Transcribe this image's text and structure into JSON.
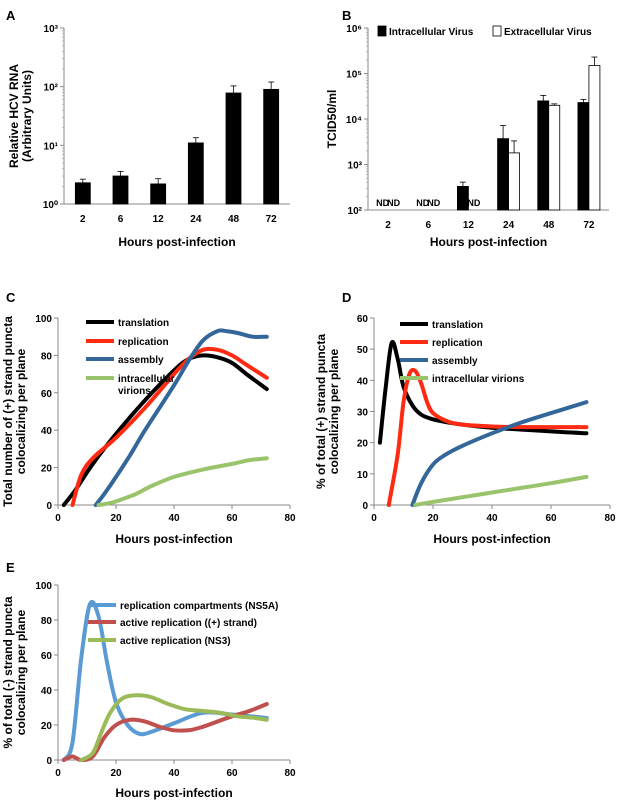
{
  "chart_data": [
    {
      "id": "A",
      "type": "bar",
      "letter": "A",
      "ylabel_lines": [
        "Relative HCV RNA",
        "(Arbitrary Units)"
      ],
      "xlabel": "Hours post-infection",
      "yscale": "log",
      "ylim": [
        1,
        1000
      ],
      "ytick_labels": [
        "10⁰",
        "10¹",
        "10²",
        "10³"
      ],
      "categories": [
        "2",
        "6",
        "12",
        "24",
        "48",
        "72"
      ],
      "series": [
        {
          "values": [
            2.3,
            3.0,
            2.2,
            11,
            78,
            90
          ],
          "errors": [
            0.35,
            0.6,
            0.5,
            2.5,
            25,
            30
          ],
          "color": "#000000"
        }
      ]
    },
    {
      "id": "B",
      "type": "bar",
      "letter": "B",
      "ylabel": "TCID50/ml",
      "xlabel": "Hours post-infection",
      "yscale": "log",
      "ylim": [
        100,
        1000000
      ],
      "ytick_labels": [
        "10²",
        "10³",
        "10⁴",
        "10⁵",
        "10⁶"
      ],
      "categories": [
        "2",
        "6",
        "12",
        "24",
        "48",
        "72"
      ],
      "legend_position": "top",
      "series": [
        {
          "name": "Intracellular Virus",
          "values": [
            null,
            null,
            330,
            3700,
            25000,
            23000
          ],
          "errors": [
            null,
            null,
            80,
            3500,
            8000,
            4000
          ],
          "color": "#000000"
        },
        {
          "name": "Extracellular Virus",
          "values": [
            null,
            null,
            null,
            1800,
            20000,
            150000
          ],
          "errors": [
            null,
            null,
            null,
            1500,
            1500,
            80000
          ],
          "color": "#ffffff"
        }
      ],
      "nd_label": "ND"
    },
    {
      "id": "C",
      "type": "line",
      "letter": "C",
      "ylabel_lines": [
        "Total number of (+) strand puncta",
        "colocalizing per plane"
      ],
      "xlabel": "Hours post-infection",
      "xlim": [
        0,
        80
      ],
      "ylim": [
        0,
        100
      ],
      "xticks": [
        0,
        20,
        40,
        60,
        80
      ],
      "yticks": [
        0,
        20,
        40,
        60,
        80,
        100
      ],
      "legend_position": "top-right",
      "series": [
        {
          "name": "translation",
          "color": "#000000",
          "x": [
            2,
            6,
            12,
            20,
            30,
            40,
            45,
            50,
            55,
            60,
            65,
            72
          ],
          "y": [
            0,
            8,
            22,
            38,
            56,
            72,
            78,
            80,
            79,
            76,
            70,
            62
          ]
        },
        {
          "name": "replication",
          "color": "#ff2a12",
          "x": [
            5,
            8,
            12,
            20,
            30,
            40,
            45,
            50,
            55,
            60,
            65,
            72
          ],
          "y": [
            0,
            16,
            25,
            36,
            52,
            70,
            78,
            83,
            83,
            80,
            75,
            68
          ]
        },
        {
          "name": "assembly",
          "color": "#336699",
          "x": [
            13,
            16,
            20,
            25,
            30,
            40,
            45,
            50,
            55,
            58,
            62,
            67,
            72
          ],
          "y": [
            0,
            6,
            15,
            27,
            40,
            64,
            77,
            88,
            93,
            93,
            92,
            90,
            90
          ]
        },
        {
          "name": "intracellular virions",
          "name_lines": [
            "intracellular",
            "virions"
          ],
          "color": "#99c46c",
          "x": [
            14,
            18,
            22,
            27,
            32,
            40,
            50,
            60,
            66,
            72
          ],
          "y": [
            0,
            1,
            3,
            6,
            10,
            15,
            19,
            22,
            24,
            25
          ]
        }
      ]
    },
    {
      "id": "D",
      "type": "line",
      "letter": "D",
      "ylabel_lines": [
        "% of total (+) strand puncta",
        "colocalizing per plane"
      ],
      "xlabel": "Hours post-infection",
      "xlim": [
        0,
        80
      ],
      "ylim": [
        0,
        60
      ],
      "xticks": [
        0,
        20,
        40,
        60,
        80
      ],
      "yticks": [
        0,
        10,
        20,
        30,
        40,
        50,
        60
      ],
      "legend_position": "top-right",
      "series": [
        {
          "name": "translation",
          "color": "#000000",
          "x": [
            2,
            4,
            6,
            8,
            10,
            13,
            16,
            20,
            25,
            30,
            40,
            50,
            60,
            72
          ],
          "y": [
            20,
            38,
            52,
            47,
            38,
            32,
            29,
            27.5,
            26.5,
            25.8,
            24.8,
            24.2,
            23.6,
            23
          ]
        },
        {
          "name": "replication",
          "color": "#ff2a12",
          "x": [
            5,
            8,
            10,
            12,
            14,
            16,
            18,
            20,
            25,
            30,
            40,
            50,
            60,
            72
          ],
          "y": [
            0,
            16,
            33,
            42,
            43,
            39,
            33,
            29.5,
            26.8,
            25.8,
            25.2,
            25,
            25,
            25
          ]
        },
        {
          "name": "assembly",
          "color": "#336699",
          "x": [
            13,
            16,
            20,
            24,
            30,
            40,
            50,
            60,
            72
          ],
          "y": [
            0,
            7,
            13,
            16,
            19,
            23,
            26.5,
            29.5,
            33
          ]
        },
        {
          "name": "intracellular virions",
          "color": "#99c46c",
          "x": [
            14,
            20,
            30,
            40,
            50,
            60,
            72
          ],
          "y": [
            0,
            1,
            2.5,
            4,
            5.5,
            7,
            9
          ]
        }
      ]
    },
    {
      "id": "E",
      "type": "line",
      "letter": "E",
      "ylabel_lines": [
        "% of total (-) strand puncta",
        "colocalizing per plane"
      ],
      "xlabel": "Hours post-infection",
      "xlim": [
        0,
        80
      ],
      "ylim": [
        0,
        100
      ],
      "xticks": [
        0,
        20,
        40,
        60,
        80
      ],
      "yticks": [
        0,
        20,
        40,
        60,
        80,
        100
      ],
      "legend_position": "top-right",
      "series": [
        {
          "name": "replication compartments (NS5A)",
          "color": "#5b9bd5",
          "x": [
            2,
            5,
            8,
            11,
            14,
            17,
            20,
            24,
            28,
            32,
            40,
            50,
            60,
            72
          ],
          "y": [
            0,
            10,
            58,
            89,
            82,
            55,
            33,
            20,
            15,
            16,
            21,
            27,
            26,
            24
          ]
        },
        {
          "name": "active replication ((+) strand)",
          "color": "#c0504d",
          "x": [
            2,
            5,
            8,
            12,
            16,
            20,
            25,
            30,
            35,
            40,
            45,
            50,
            55,
            60,
            66,
            72
          ],
          "y": [
            0,
            2,
            0,
            2,
            13,
            20,
            23,
            22,
            19,
            17,
            17,
            19,
            22,
            25,
            28,
            32
          ]
        },
        {
          "name": "active replication (NS3)",
          "color": "#9bbb59",
          "x": [
            8,
            12,
            15,
            18,
            22,
            27,
            32,
            38,
            44,
            50,
            56,
            62,
            68,
            72
          ],
          "y": [
            0,
            4,
            16,
            27,
            35,
            37,
            36,
            32,
            29,
            28,
            27,
            25,
            24,
            23
          ]
        }
      ]
    }
  ]
}
